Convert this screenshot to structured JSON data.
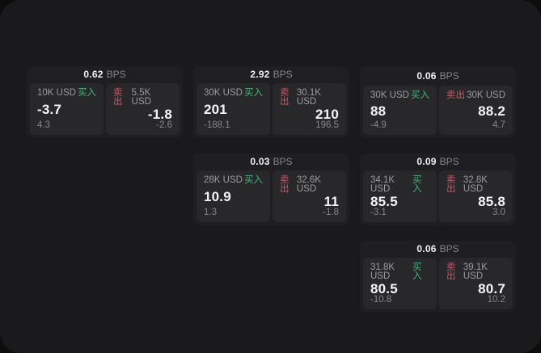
{
  "labels": {
    "bps_unit": "BPS",
    "buy": "买入",
    "sell": "卖出"
  },
  "colors": {
    "page_background": "#0d0d0e",
    "surface": "#1a1a1c",
    "card": "#1f1f22",
    "panel": "#28282b",
    "buy_accent": "#3cb878",
    "sell_accent": "#d05565"
  },
  "cards": [
    {
      "bps": "0.62",
      "buy": {
        "amount": "10K USD",
        "price": "-3.7",
        "delta": "4.3"
      },
      "sell": {
        "amount": "5.5K USD",
        "price": "-1.8",
        "delta": "-2.6"
      }
    },
    {
      "bps": "2.92",
      "buy": {
        "amount": "30K USD",
        "price": "201",
        "delta": "-188.1"
      },
      "sell": {
        "amount": "30.1K USD",
        "price": "210",
        "delta": "196.5"
      }
    },
    {
      "bps": "0.06",
      "buy": {
        "amount": "30K USD",
        "price": "88",
        "delta": "-4.9"
      },
      "sell": {
        "amount": "30K USD",
        "price": "88.2",
        "delta": "4.7"
      }
    },
    {
      "bps": "0.03",
      "buy": {
        "amount": "28K USD",
        "price": "10.9",
        "delta": "1.3"
      },
      "sell": {
        "amount": "32.6K USD",
        "price": "11",
        "delta": "-1.8"
      }
    },
    {
      "bps": "0.09",
      "buy": {
        "amount": "34.1K USD",
        "price": "85.5",
        "delta": "-3.1"
      },
      "sell": {
        "amount": "32.8K USD",
        "price": "85.8",
        "delta": "3.0"
      }
    },
    {
      "bps": "0.06",
      "buy": {
        "amount": "31.8K USD",
        "price": "80.5",
        "delta": "-10.8"
      },
      "sell": {
        "amount": "39.1K USD",
        "price": "80.7",
        "delta": "10.2"
      }
    }
  ]
}
